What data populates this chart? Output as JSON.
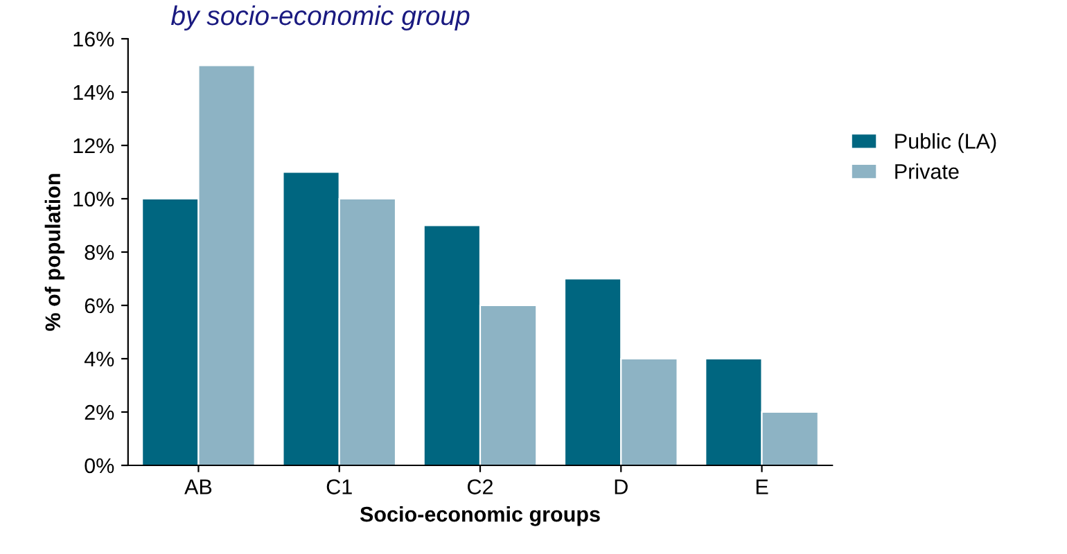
{
  "chart_data": {
    "type": "bar",
    "subtitle": "by socio-economic group",
    "xlabel": "Socio-economic groups",
    "ylabel": "% of population",
    "categories": [
      "AB",
      "C1",
      "C2",
      "D",
      "E"
    ],
    "series": [
      {
        "name": "Public (LA)",
        "color": "#006680",
        "values": [
          10,
          11,
          9,
          7,
          4
        ]
      },
      {
        "name": "Private",
        "color": "#8db3c4",
        "values": [
          15,
          10,
          6,
          4,
          2
        ]
      }
    ],
    "ylim": [
      0,
      16
    ],
    "yticks": [
      {
        "value": 0,
        "label": "0%"
      },
      {
        "value": 2,
        "label": "2%"
      },
      {
        "value": 4,
        "label": "4%"
      },
      {
        "value": 6,
        "label": "6%"
      },
      {
        "value": 8,
        "label": "8%"
      },
      {
        "value": 10,
        "label": "10%"
      },
      {
        "value": 12,
        "label": "12%"
      },
      {
        "value": 14,
        "label": "14%"
      },
      {
        "value": 16,
        "label": "16%"
      }
    ],
    "grid": false,
    "legend": "right"
  }
}
